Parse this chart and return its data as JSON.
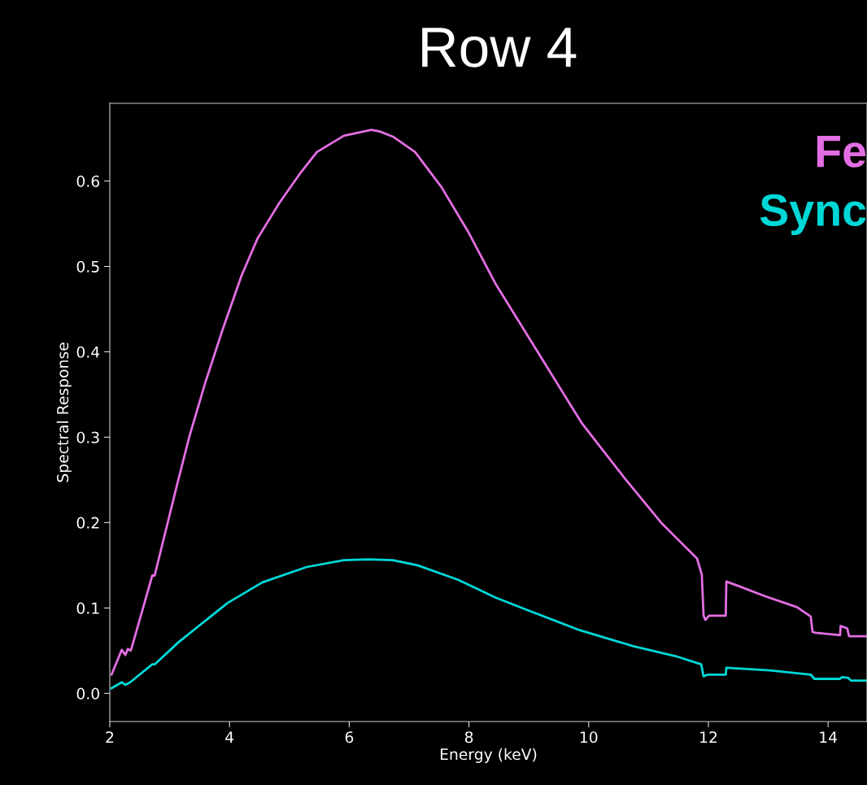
{
  "chart_data": {
    "type": "line",
    "title": "Row 4",
    "xlabel": "Energy (keV)",
    "ylabel": "Spectral Response",
    "xlim": [
      2,
      14.65
    ],
    "xticks": [
      2,
      4,
      6,
      8,
      10,
      12,
      14
    ],
    "ylim": [
      -0.033,
      0.691
    ],
    "yticks": [
      {
        "value": 0,
        "label": "0.0"
      },
      0.1,
      0.2,
      0.3,
      0.4,
      0.5,
      0.6
    ],
    "legend": "top right",
    "grid": false,
    "marker": "none",
    "line_style": "solid",
    "series": [
      {
        "name": "Fe",
        "color": "#e36ee3",
        "x": [
          2.03,
          2.2,
          2.26,
          2.3,
          2.35,
          2.38,
          2.71,
          2.75,
          2.77,
          3.13,
          3.33,
          3.6,
          3.88,
          4.2,
          4.47,
          4.83,
          5.19,
          5.46,
          5.91,
          6.37,
          6.51,
          6.73,
          7.1,
          7.54,
          8.0,
          8.45,
          9.88,
          10.59,
          11.21,
          11.48,
          11.81,
          11.89,
          11.92,
          11.95,
          12.01,
          12.29,
          12.3,
          12.53,
          12.94,
          13.48,
          13.71,
          13.74,
          13.79,
          14.2,
          14.21,
          14.32,
          14.35,
          14.65
        ],
        "values": [
          0.022,
          0.051,
          0.045,
          0.052,
          0.05,
          0.057,
          0.138,
          0.138,
          0.144,
          0.246,
          0.301,
          0.365,
          0.425,
          0.489,
          0.533,
          0.574,
          0.61,
          0.634,
          0.653,
          0.66,
          0.658,
          0.652,
          0.634,
          0.593,
          0.539,
          0.479,
          0.317,
          0.253,
          0.2,
          0.181,
          0.158,
          0.139,
          0.091,
          0.086,
          0.091,
          0.091,
          0.131,
          0.125,
          0.114,
          0.101,
          0.09,
          0.072,
          0.071,
          0.068,
          0.079,
          0.076,
          0.067,
          0.067
        ]
      },
      {
        "name": "Sync",
        "color": "#00d8d8",
        "x": [
          2.03,
          2.2,
          2.26,
          2.34,
          2.71,
          2.75,
          3.15,
          3.97,
          4.55,
          5.29,
          5.91,
          6.32,
          6.73,
          7.14,
          7.82,
          8.45,
          8.96,
          9.85,
          10.76,
          11.48,
          11.88,
          11.92,
          11.99,
          12.29,
          12.3,
          13.03,
          13.71,
          13.77,
          14.2,
          14.23,
          14.34,
          14.38,
          14.65
        ],
        "values": [
          0.006,
          0.013,
          0.01,
          0.013,
          0.034,
          0.034,
          0.06,
          0.106,
          0.13,
          0.148,
          0.156,
          0.157,
          0.156,
          0.15,
          0.133,
          0.112,
          0.098,
          0.074,
          0.055,
          0.043,
          0.034,
          0.02,
          0.022,
          0.022,
          0.03,
          0.027,
          0.022,
          0.017,
          0.017,
          0.019,
          0.018,
          0.015,
          0.015
        ]
      }
    ]
  }
}
